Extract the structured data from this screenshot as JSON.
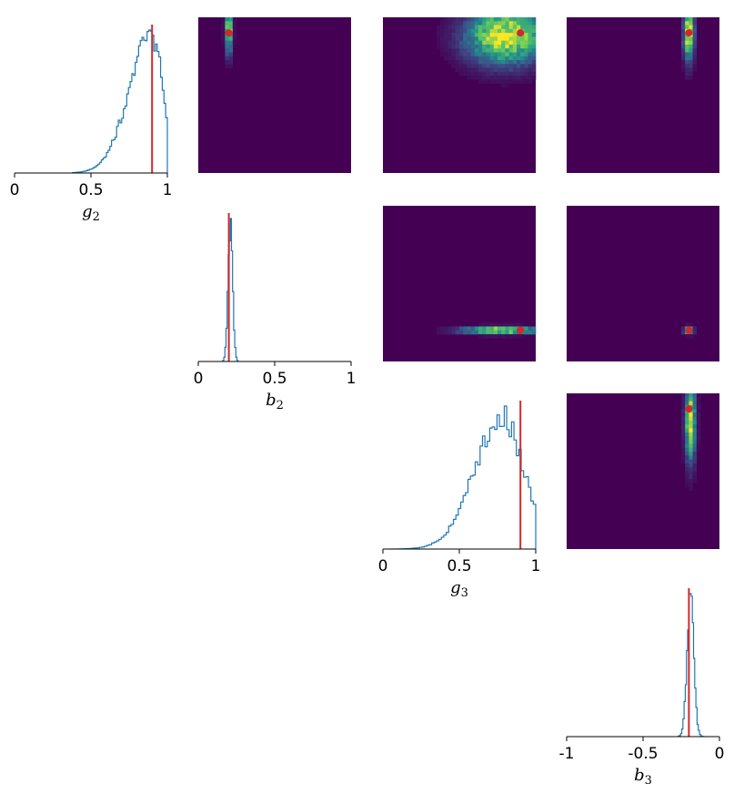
{
  "chart_data": {
    "type": "corner",
    "parameters": [
      "g2",
      "b2",
      "g3",
      "b3"
    ],
    "truths": {
      "g2": 0.9,
      "b2": 0.2,
      "g3": 0.9,
      "b3": -0.2
    },
    "colors": {
      "background": "#ffffff",
      "histogram": "#1f77b4",
      "truth": "#d62728",
      "heatmap_low": "#440154",
      "heatmap_mid": "#21918c",
      "heatmap_high": "#fde725"
    },
    "diagonal": [
      {
        "param": "g2",
        "axis_label": "g",
        "axis_sub": "2",
        "xlim": [
          0,
          1
        ],
        "ticks": [
          0,
          0.5,
          1
        ],
        "tick_labels": [
          "0",
          "0.5",
          "1"
        ],
        "truth": 0.9,
        "hist": {
          "type": "skew",
          "range": [
            0.38,
            1.0
          ],
          "peak": 0.9,
          "left_sigma": 0.15,
          "right_sigma": 0.07,
          "bins": 56
        }
      },
      {
        "param": "b2",
        "axis_label": "b",
        "axis_sub": "2",
        "xlim": [
          0,
          1
        ],
        "ticks": [
          0,
          0.5,
          1
        ],
        "tick_labels": [
          "0",
          "0.5",
          "1"
        ],
        "truth": 0.2,
        "hist": {
          "type": "gauss",
          "range": [
            0.16,
            0.26
          ],
          "mean": 0.21,
          "sigma": 0.015,
          "bins": 14
        }
      },
      {
        "param": "g3",
        "axis_label": "g",
        "axis_sub": "3",
        "xlim": [
          0,
          1
        ],
        "ticks": [
          0,
          0.5,
          1
        ],
        "tick_labels": [
          "0",
          "0.5",
          "1"
        ],
        "truth": 0.9,
        "hist": {
          "type": "skew",
          "range": [
            0.05,
            1.0
          ],
          "peak": 0.78,
          "left_sigma": 0.18,
          "right_sigma": 0.14,
          "bins": 60
        }
      },
      {
        "param": "b3",
        "axis_label": "b",
        "axis_sub": "3",
        "xlim": [
          -1,
          0
        ],
        "ticks": [
          -1,
          -0.5,
          0
        ],
        "tick_labels": [
          "-1",
          "-0.5",
          "0"
        ],
        "truth": -0.2,
        "hist": {
          "type": "gauss",
          "range": [
            -0.27,
            -0.1
          ],
          "mean": -0.19,
          "sigma": 0.022,
          "bins": 22
        }
      }
    ],
    "off_diagonal": [
      {
        "row": 0,
        "col": 1,
        "x_param": "b2",
        "y_param": "g2",
        "xlim": [
          0,
          1
        ],
        "ylim": [
          0,
          1
        ],
        "truth": [
          0.2,
          0.9
        ],
        "density": {
          "mx": 0.2,
          "sx": 0.015,
          "my": 0.92,
          "sy": 0.1
        }
      },
      {
        "row": 0,
        "col": 2,
        "x_param": "g3",
        "y_param": "g2",
        "xlim": [
          0,
          1
        ],
        "ylim": [
          0,
          1
        ],
        "truth": [
          0.9,
          0.9
        ],
        "density": {
          "mx": 0.8,
          "sx": 0.17,
          "my": 0.88,
          "sy": 0.12
        }
      },
      {
        "row": 0,
        "col": 3,
        "x_param": "b3",
        "y_param": "g2",
        "xlim": [
          -1,
          0
        ],
        "ylim": [
          0,
          1
        ],
        "truth": [
          -0.2,
          0.9
        ],
        "density": {
          "mx": -0.2,
          "sx": 0.022,
          "my": 0.9,
          "sy": 0.12
        }
      },
      {
        "row": 1,
        "col": 2,
        "x_param": "g3",
        "y_param": "b2",
        "xlim": [
          0,
          1
        ],
        "ylim": [
          0,
          1
        ],
        "truth": [
          0.9,
          0.2
        ],
        "density": {
          "mx": 0.78,
          "sx": 0.17,
          "my": 0.2,
          "sy": 0.015
        }
      },
      {
        "row": 1,
        "col": 3,
        "x_param": "b3",
        "y_param": "b2",
        "xlim": [
          -1,
          0
        ],
        "ylim": [
          0,
          1
        ],
        "truth": [
          -0.2,
          0.2
        ],
        "density": {
          "mx": -0.2,
          "sx": 0.02,
          "my": 0.2,
          "sy": 0.015
        }
      },
      {
        "row": 2,
        "col": 3,
        "x_param": "b3",
        "y_param": "g3",
        "xlim": [
          -1,
          0
        ],
        "ylim": [
          0,
          1
        ],
        "truth": [
          -0.2,
          0.9
        ],
        "density": {
          "mx": -0.19,
          "sx": 0.022,
          "my": 0.82,
          "sy": 0.17
        }
      }
    ]
  }
}
